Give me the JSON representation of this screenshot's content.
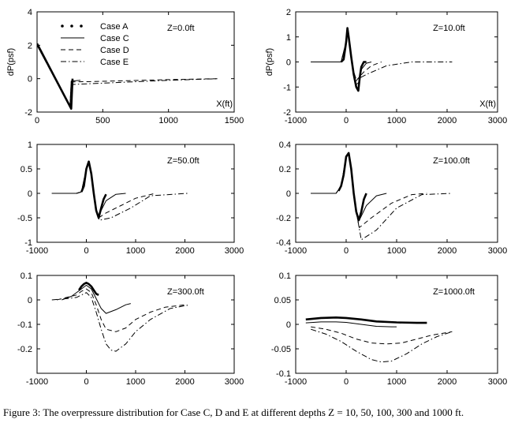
{
  "caption": "Figure 3: The overpressure distribution for Case C, D and E at different depths Z = 10, 50, 100, 300 and 1000 ft.",
  "chart_data": [
    {
      "type": "line",
      "annotation": "Z=0.0ft",
      "ylabel": "dP(psf)",
      "xlabel": "X(ft)",
      "xlim": [
        0,
        1500
      ],
      "ylim": [
        -2,
        4
      ],
      "xticks": [
        0,
        500,
        1000,
        1500
      ],
      "yticks": [
        -2,
        0,
        2,
        4
      ],
      "legend": {
        "position": "top-left",
        "entries": [
          "Case A",
          "Case C",
          "Case D",
          "Case E"
        ]
      },
      "series": [
        {
          "name": "Case A",
          "style": "bold",
          "x": [
            0,
            260,
            270
          ],
          "y": [
            2.1,
            -1.8,
            0
          ]
        },
        {
          "name": "Case C",
          "style": "solid",
          "x": [
            0,
            250,
            260,
            330
          ],
          "y": [
            2.0,
            -1.7,
            -0.15,
            -0.1
          ]
        },
        {
          "name": "Case D",
          "style": "dashed",
          "x": [
            0,
            250,
            260,
            700,
            1000,
            1380
          ],
          "y": [
            2.0,
            -1.7,
            -0.2,
            -0.12,
            -0.06,
            0
          ]
        },
        {
          "name": "Case E",
          "style": "dashdot",
          "x": [
            0,
            250,
            260,
            700,
            1000,
            1380
          ],
          "y": [
            2.0,
            -1.7,
            -0.35,
            -0.2,
            -0.1,
            0
          ]
        }
      ]
    },
    {
      "type": "line",
      "annotation": "Z=10.0ft",
      "ylabel": "dP(psf)",
      "xlabel": "X(ft)",
      "xlim": [
        -1000,
        3000
      ],
      "ylim": [
        -2,
        2
      ],
      "xticks": [
        -1000,
        0,
        1000,
        2000,
        3000
      ],
      "yticks": [
        -2,
        -1,
        0,
        1,
        2
      ],
      "series": [
        {
          "name": "Case A",
          "style": "bold",
          "x": [
            -100,
            -50,
            0,
            25,
            50,
            100,
            150,
            200,
            240,
            270,
            300,
            350,
            400
          ],
          "y": [
            0,
            0.1,
            0.8,
            1.35,
            1.0,
            0.2,
            -0.5,
            -1.0,
            -1.15,
            -0.6,
            -0.2,
            0,
            0
          ]
        },
        {
          "name": "Case C",
          "style": "solid",
          "x": [
            -700,
            -100,
            0,
            25,
            50,
            100,
            150,
            200,
            260,
            300,
            400,
            500
          ],
          "y": [
            0,
            0,
            0.8,
            1.2,
            1.0,
            0.2,
            -0.5,
            -0.9,
            -0.8,
            -0.3,
            -0.05,
            0
          ]
        },
        {
          "name": "Case D",
          "style": "dashed",
          "x": [
            -700,
            -100,
            0,
            25,
            50,
            100,
            150,
            200,
            260,
            350,
            500,
            700
          ],
          "y": [
            0,
            0,
            0.8,
            1.2,
            1.0,
            0.2,
            -0.4,
            -0.75,
            -0.6,
            -0.4,
            -0.15,
            0
          ]
        },
        {
          "name": "Case E",
          "style": "dashdot",
          "x": [
            -700,
            -100,
            0,
            25,
            50,
            100,
            150,
            200,
            260,
            400,
            800,
            1300,
            2100
          ],
          "y": [
            0,
            0,
            0.8,
            1.2,
            1.0,
            0.2,
            -0.4,
            -0.7,
            -0.65,
            -0.5,
            -0.15,
            0,
            0
          ]
        }
      ]
    },
    {
      "type": "line",
      "annotation": "Z=50.0ft",
      "xlim": [
        -1000,
        3000
      ],
      "ylim": [
        -1,
        1
      ],
      "xticks": [
        -1000,
        0,
        1000,
        2000,
        3000
      ],
      "yticks": [
        -1,
        -0.5,
        0,
        0.5,
        1
      ],
      "series": [
        {
          "name": "Case A",
          "style": "bold",
          "x": [
            -100,
            -50,
            0,
            50,
            100,
            150,
            200,
            250,
            300,
            350,
            400
          ],
          "y": [
            0.03,
            0.15,
            0.5,
            0.65,
            0.4,
            0,
            -0.35,
            -0.5,
            -0.3,
            -0.12,
            -0.02
          ]
        },
        {
          "name": "Case C",
          "style": "solid",
          "x": [
            -700,
            -200,
            -100,
            0,
            50,
            100,
            150,
            200,
            250,
            300,
            400,
            600,
            800
          ],
          "y": [
            0,
            0,
            0.03,
            0.5,
            0.65,
            0.4,
            0,
            -0.35,
            -0.48,
            -0.35,
            -0.15,
            -0.02,
            0
          ]
        },
        {
          "name": "Case D",
          "style": "dashed",
          "x": [
            -700,
            -200,
            -100,
            0,
            50,
            100,
            150,
            200,
            250,
            400,
            700,
            1000,
            1400
          ],
          "y": [
            0,
            0,
            0.03,
            0.5,
            0.65,
            0.4,
            0,
            -0.35,
            -0.5,
            -0.4,
            -0.25,
            -0.1,
            0
          ]
        },
        {
          "name": "Case E",
          "style": "dashdot",
          "x": [
            -700,
            -200,
            -100,
            0,
            50,
            100,
            150,
            200,
            260,
            500,
            900,
            1300,
            2050
          ],
          "y": [
            0,
            0,
            0.03,
            0.5,
            0.65,
            0.4,
            0,
            -0.35,
            -0.55,
            -0.5,
            -0.3,
            -0.05,
            0
          ]
        }
      ]
    },
    {
      "type": "line",
      "annotation": "Z=100.0ft",
      "xlim": [
        -1000,
        3000
      ],
      "ylim": [
        -0.4,
        0.4
      ],
      "xticks": [
        -1000,
        0,
        1000,
        2000,
        3000
      ],
      "yticks": [
        -0.4,
        -0.2,
        0,
        0.2,
        0.4
      ],
      "series": [
        {
          "name": "Case A",
          "style": "bold",
          "x": [
            -150,
            -100,
            -50,
            0,
            50,
            100,
            150,
            200,
            250,
            300,
            350,
            400
          ],
          "y": [
            0.02,
            0.06,
            0.15,
            0.3,
            0.33,
            0.2,
            0,
            -0.15,
            -0.22,
            -0.15,
            -0.05,
            0
          ]
        },
        {
          "name": "Case C",
          "style": "solid",
          "x": [
            -700,
            -200,
            -100,
            0,
            50,
            100,
            150,
            200,
            260,
            400,
            600,
            800
          ],
          "y": [
            0,
            0,
            0.06,
            0.3,
            0.33,
            0.2,
            0,
            -0.15,
            -0.22,
            -0.1,
            -0.02,
            0
          ]
        },
        {
          "name": "Case D",
          "style": "dashed",
          "x": [
            -700,
            -200,
            -100,
            0,
            50,
            100,
            150,
            200,
            260,
            500,
            900,
            1300,
            1600
          ],
          "y": [
            0,
            0,
            0.06,
            0.3,
            0.33,
            0.2,
            0,
            -0.15,
            -0.28,
            -0.2,
            -0.08,
            -0.01,
            0
          ]
        },
        {
          "name": "Case E",
          "style": "dashdot",
          "x": [
            -700,
            -200,
            -100,
            0,
            50,
            100,
            150,
            200,
            300,
            600,
            1000,
            1500,
            2100
          ],
          "y": [
            0,
            0,
            0.06,
            0.3,
            0.33,
            0.2,
            0,
            -0.15,
            -0.38,
            -0.3,
            -0.12,
            -0.01,
            0
          ]
        }
      ]
    },
    {
      "type": "line",
      "annotation": "Z=300.0ft",
      "xlim": [
        -1000,
        3000
      ],
      "ylim": [
        -0.3,
        0.1
      ],
      "xticks": [
        -1000,
        0,
        1000,
        2000,
        3000
      ],
      "yticks": [
        -0.2,
        -0.1,
        0,
        0.1
      ],
      "series": [
        {
          "name": "Case A",
          "style": "bold",
          "x": [
            -150,
            -100,
            -50,
            0,
            50,
            100,
            150,
            200,
            250
          ],
          "y": [
            0.04,
            0.055,
            0.065,
            0.07,
            0.065,
            0.055,
            0.04,
            0.025,
            0.02
          ]
        },
        {
          "name": "Case C",
          "style": "solid",
          "x": [
            -500,
            -300,
            -100,
            0,
            100,
            200,
            300,
            400,
            600,
            800,
            900
          ],
          "y": [
            0,
            0.015,
            0.045,
            0.06,
            0.045,
            0.005,
            -0.035,
            -0.055,
            -0.04,
            -0.02,
            -0.015
          ]
        },
        {
          "name": "Case D",
          "style": "dashed",
          "x": [
            -600,
            -400,
            -200,
            -100,
            0,
            100,
            200,
            300,
            400,
            600,
            800,
            1000,
            1300,
            1600,
            2000
          ],
          "y": [
            0,
            0.01,
            0.02,
            0.035,
            0.045,
            0.03,
            -0.02,
            -0.08,
            -0.12,
            -0.13,
            -0.115,
            -0.08,
            -0.05,
            -0.03,
            -0.02
          ]
        },
        {
          "name": "Case E",
          "style": "dashdot",
          "x": [
            -700,
            -400,
            -200,
            -100,
            0,
            100,
            200,
            300,
            400,
            500,
            600,
            800,
            1000,
            1300,
            1700,
            2100
          ],
          "y": [
            0,
            0.005,
            0.01,
            0.02,
            0.03,
            0.01,
            -0.05,
            -0.12,
            -0.18,
            -0.205,
            -0.21,
            -0.18,
            -0.13,
            -0.08,
            -0.035,
            -0.02
          ]
        }
      ]
    },
    {
      "type": "line",
      "annotation": "Z=1000.0ft",
      "xlim": [
        -1000,
        3000
      ],
      "ylim": [
        -0.1,
        0.1
      ],
      "xticks": [
        -1000,
        0,
        1000,
        2000,
        3000
      ],
      "yticks": [
        -0.1,
        -0.05,
        0,
        0.05,
        0.1
      ],
      "series": [
        {
          "name": "Case A",
          "style": "bold",
          "x": [
            -800,
            -500,
            -200,
            0,
            300,
            600,
            1000,
            1400,
            1600
          ],
          "y": [
            0.01,
            0.013,
            0.014,
            0.013,
            0.01,
            0.006,
            0.004,
            0.003,
            0.003
          ]
        },
        {
          "name": "Case C",
          "style": "solid",
          "x": [
            -800,
            -500,
            -200,
            0,
            300,
            600,
            900,
            1000
          ],
          "y": [
            0.003,
            0.005,
            0.005,
            0.004,
            0,
            -0.004,
            -0.005,
            -0.005
          ]
        },
        {
          "name": "Case D",
          "style": "dashed",
          "x": [
            -700,
            -400,
            -100,
            200,
            500,
            800,
            1100,
            1400,
            1700,
            2100
          ],
          "y": [
            -0.005,
            -0.01,
            -0.018,
            -0.03,
            -0.038,
            -0.04,
            -0.038,
            -0.03,
            -0.022,
            -0.015
          ]
        },
        {
          "name": "Case E",
          "style": "dashdot",
          "x": [
            -700,
            -400,
            -100,
            200,
            500,
            700,
            900,
            1200,
            1500,
            1800,
            2100
          ],
          "y": [
            -0.01,
            -0.02,
            -0.035,
            -0.055,
            -0.072,
            -0.077,
            -0.075,
            -0.06,
            -0.04,
            -0.025,
            -0.015
          ]
        }
      ]
    }
  ]
}
